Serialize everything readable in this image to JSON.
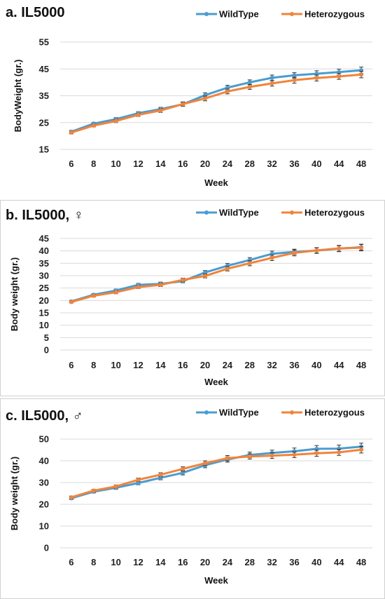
{
  "chart_data": [
    {
      "type": "line",
      "title": "a. IL5000",
      "xlabel": "Week",
      "ylabel": "BodyWeight (gr.)",
      "categories": [
        "6",
        "8",
        "10",
        "12",
        "14",
        "16",
        "20",
        "24",
        "28",
        "32",
        "36",
        "40",
        "44",
        "48"
      ],
      "yticks": [
        "15",
        "25",
        "35",
        "45",
        "55"
      ],
      "ylim": [
        15,
        55
      ],
      "legend": "top-right",
      "series": [
        {
          "name": "WildType",
          "color": "#4a9cd0",
          "values": [
            21.6,
            24.6,
            26.3,
            28.5,
            30.0,
            31.8,
            35.2,
            38.0,
            40.0,
            41.7,
            42.6,
            43.2,
            43.8,
            44.5
          ],
          "errors": [
            0.5,
            0.5,
            0.6,
            0.6,
            0.7,
            0.7,
            0.9,
            0.9,
            0.9,
            1.0,
            1.0,
            1.1,
            1.1,
            1.2
          ]
        },
        {
          "name": "Heterozygous",
          "color": "#f0843c",
          "values": [
            21.3,
            23.9,
            25.6,
            27.9,
            29.5,
            31.9,
            34.0,
            36.6,
            38.3,
            39.6,
            40.8,
            41.6,
            42.2,
            42.9
          ],
          "errors": [
            0.5,
            0.5,
            0.6,
            0.6,
            0.7,
            0.8,
            0.9,
            0.9,
            0.9,
            1.0,
            1.1,
            1.1,
            1.1,
            1.2
          ]
        }
      ]
    },
    {
      "type": "line",
      "title": "b. IL5000, ♀",
      "xlabel": "Week",
      "ylabel": "Body weight (gr.)",
      "categories": [
        "6",
        "8",
        "10",
        "12",
        "14",
        "16",
        "20",
        "24",
        "28",
        "32",
        "36",
        "40",
        "44",
        "48"
      ],
      "yticks": [
        "0",
        "5",
        "10",
        "15",
        "20",
        "25",
        "30",
        "35",
        "40",
        "45"
      ],
      "ylim": [
        0,
        45
      ],
      "legend": "top-right",
      "series": [
        {
          "name": "WildType",
          "color": "#4a9cd0",
          "values": [
            19.6,
            22.3,
            24.0,
            26.3,
            26.7,
            27.8,
            31.3,
            34.0,
            36.3,
            38.8,
            39.6,
            40.1,
            40.9,
            41.5
          ],
          "errors": [
            0.4,
            0.5,
            0.6,
            0.6,
            0.7,
            0.7,
            0.8,
            0.9,
            1.0,
            1.1,
            1.1,
            1.1,
            1.2,
            1.2
          ]
        },
        {
          "name": "Heterozygous",
          "color": "#f0843c",
          "values": [
            19.4,
            21.9,
            23.3,
            25.4,
            26.3,
            28.3,
            29.9,
            32.8,
            35.0,
            37.2,
            39.2,
            40.2,
            41.0,
            41.3
          ],
          "errors": [
            0.4,
            0.5,
            0.6,
            0.6,
            0.7,
            0.7,
            0.8,
            0.9,
            1.0,
            1.1,
            1.2,
            1.1,
            1.2,
            1.3
          ]
        }
      ]
    },
    {
      "type": "line",
      "title": "c. IL5000, ♂",
      "xlabel": "Week",
      "ylabel": "Body weight (gr.)",
      "categories": [
        "6",
        "8",
        "10",
        "12",
        "14",
        "16",
        "20",
        "24",
        "28",
        "32",
        "36",
        "40",
        "44",
        "48"
      ],
      "yticks": [
        "0",
        "10",
        "20",
        "30",
        "40",
        "50"
      ],
      "ylim": [
        0,
        50
      ],
      "legend": "top-right",
      "series": [
        {
          "name": "WildType",
          "color": "#4a9cd0",
          "values": [
            22.8,
            25.8,
            27.6,
            29.8,
            32.2,
            34.5,
            38.0,
            40.6,
            42.7,
            43.6,
            44.4,
            45.5,
            45.6,
            46.5
          ],
          "errors": [
            0.6,
            0.6,
            0.7,
            0.8,
            0.9,
            1.0,
            1.2,
            1.2,
            1.3,
            1.3,
            1.5,
            1.5,
            1.6,
            1.6
          ]
        },
        {
          "name": "Heterozygous",
          "color": "#f0843c",
          "values": [
            23.2,
            26.3,
            28.2,
            31.3,
            33.6,
            36.3,
            38.9,
            41.2,
            42.0,
            42.4,
            42.8,
            43.5,
            43.9,
            45.1
          ],
          "errors": [
            0.6,
            0.6,
            0.7,
            0.8,
            0.9,
            1.0,
            1.1,
            1.2,
            1.2,
            1.3,
            1.3,
            1.4,
            1.4,
            1.5
          ]
        }
      ]
    }
  ]
}
